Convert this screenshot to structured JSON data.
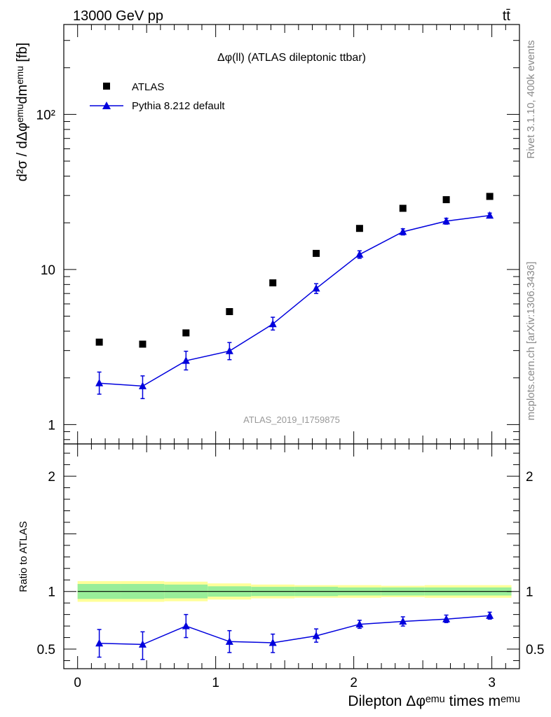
{
  "header": {
    "energy_label": "13000 GeV pp",
    "process_label": "tt̄"
  },
  "side_labels": {
    "rivet": "Rivet 3.1.10,  400k events",
    "source": "mcplots.cern.ch [arXiv:1306.3436]"
  },
  "colors": {
    "data": "#000000",
    "mc": "#0000dd",
    "band_inner": "#99ee99",
    "band_outer": "#ffff99",
    "frame": "#000000",
    "watermark": "#999999"
  },
  "chart_data": [
    {
      "type": "scatter",
      "panel": "main",
      "title": "Δφ(ll) (ATLAS dileptonic ttbar)",
      "watermark": "ATLAS_2019_I1759875",
      "ylabel": "d²σ / dΔφᵉᵐᵘdmᵉᵐᵘ [fb]",
      "yscale": "log",
      "ylim": [
        0.75,
        380
      ],
      "xlim": [
        -0.1,
        3.2
      ],
      "ytick_labels": [
        {
          "value": 1,
          "label": "1"
        },
        {
          "value": 10,
          "label": "10"
        },
        {
          "value": 100,
          "label": "10²"
        }
      ],
      "legend": {
        "placement": "top-left",
        "entries": [
          {
            "name": "ATLAS",
            "marker": "square"
          },
          {
            "name": "Pythia 8.212 default",
            "marker": "triangle-line"
          }
        ]
      },
      "x": [
        0.157,
        0.471,
        0.785,
        1.1,
        1.414,
        1.728,
        2.042,
        2.356,
        2.67,
        2.985
      ],
      "series": [
        {
          "name": "ATLAS",
          "values": [
            3.4,
            3.3,
            3.9,
            5.35,
            8.2,
            12.7,
            18.4,
            24.8,
            28.2,
            29.6
          ]
        },
        {
          "name": "Pythia 8.212 default",
          "values": [
            1.85,
            1.77,
            2.58,
            2.98,
            4.45,
            7.55,
            12.5,
            17.5,
            20.5,
            22.3
          ],
          "err_low": [
            1.57,
            1.47,
            2.25,
            2.62,
            4.07,
            7.0,
            11.8,
            16.7,
            19.6,
            21.5
          ],
          "err_high": [
            2.18,
            2.06,
            2.97,
            3.38,
            4.92,
            8.1,
            13.2,
            18.3,
            21.4,
            23.1
          ]
        }
      ]
    },
    {
      "type": "scatter",
      "panel": "ratio",
      "ylabel": "Ratio to ATLAS",
      "xlabel": "Dilepton Δφᵉᵐᵘ times mᵉᵐᵘ",
      "ylim": [
        0.33,
        2.28
      ],
      "xlim": [
        -0.1,
        3.2
      ],
      "xtick_labels": [
        {
          "value": 0,
          "label": "0"
        },
        {
          "value": 1,
          "label": "1"
        },
        {
          "value": 2,
          "label": "2"
        },
        {
          "value": 3,
          "label": "3"
        }
      ],
      "ytick_labels": [
        {
          "value": 0.5,
          "label": "0.5"
        },
        {
          "value": 1,
          "label": "1"
        },
        {
          "value": 2,
          "label": "2"
        }
      ],
      "bins": [
        0,
        0.314,
        0.628,
        0.942,
        1.257,
        1.571,
        1.885,
        2.199,
        2.513,
        2.827,
        3.142
      ],
      "band_inner": [
        0.065,
        0.065,
        0.06,
        0.045,
        0.04,
        0.04,
        0.035,
        0.035,
        0.035,
        0.035
      ],
      "band_outer": [
        0.09,
        0.09,
        0.085,
        0.07,
        0.06,
        0.055,
        0.055,
        0.05,
        0.055,
        0.055
      ],
      "x": [
        0.157,
        0.471,
        0.785,
        1.1,
        1.414,
        1.728,
        2.042,
        2.356,
        2.67,
        2.985
      ],
      "series": [
        {
          "name": "Pythia 8.212 default / ATLAS",
          "values": [
            0.55,
            0.54,
            0.7,
            0.565,
            0.555,
            0.615,
            0.715,
            0.74,
            0.76,
            0.79
          ],
          "err_low": [
            0.43,
            0.41,
            0.6,
            0.47,
            0.47,
            0.56,
            0.68,
            0.7,
            0.73,
            0.76
          ],
          "err_high": [
            0.67,
            0.65,
            0.8,
            0.66,
            0.63,
            0.675,
            0.75,
            0.78,
            0.795,
            0.82
          ]
        }
      ]
    }
  ]
}
